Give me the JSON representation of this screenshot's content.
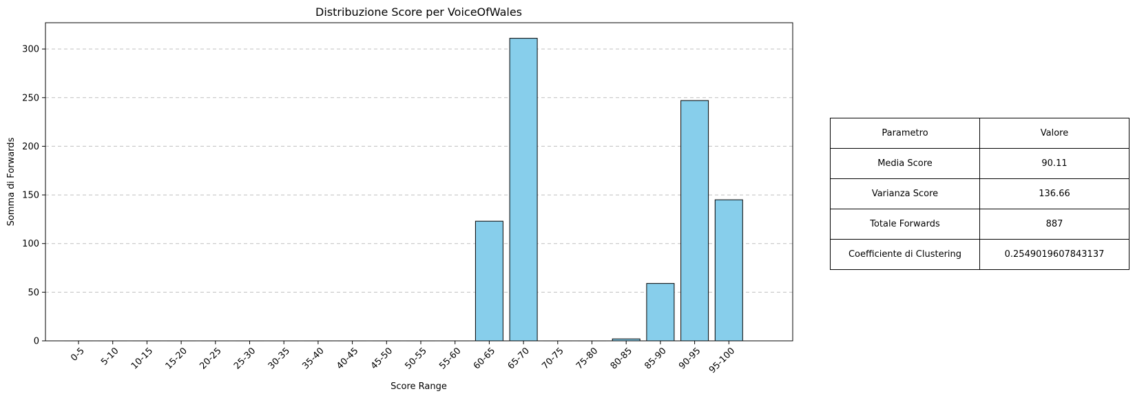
{
  "chart_data": {
    "type": "bar",
    "title": "Distribuzione Score per VoiceOfWales",
    "xlabel": "Score Range",
    "ylabel": "Somma di Forwards",
    "categories": [
      "0-5",
      "5-10",
      "10-15",
      "15-20",
      "20-25",
      "25-30",
      "30-35",
      "35-40",
      "40-45",
      "45-50",
      "50-55",
      "55-60",
      "60-65",
      "65-70",
      "70-75",
      "75-80",
      "80-85",
      "85-90",
      "90-95",
      "95-100"
    ],
    "values": [
      0,
      0,
      0,
      0,
      0,
      0,
      0,
      0,
      0,
      0,
      0,
      0,
      123,
      311,
      0,
      0,
      2,
      59,
      247,
      145
    ],
    "ylim": [
      0,
      327
    ],
    "yticks": [
      0,
      50,
      100,
      150,
      200,
      250,
      300
    ],
    "grid": "y-dashed",
    "bar_color": "#87CEEB",
    "edge_color": "#000000"
  },
  "table": {
    "header": [
      "Parametro",
      "Valore"
    ],
    "rows": [
      [
        "Media Score",
        "90.11"
      ],
      [
        "Varianza Score",
        "136.66"
      ],
      [
        "Totale Forwards",
        "887"
      ],
      [
        "Coefficiente di Clustering",
        "0.2549019607843137"
      ]
    ]
  }
}
